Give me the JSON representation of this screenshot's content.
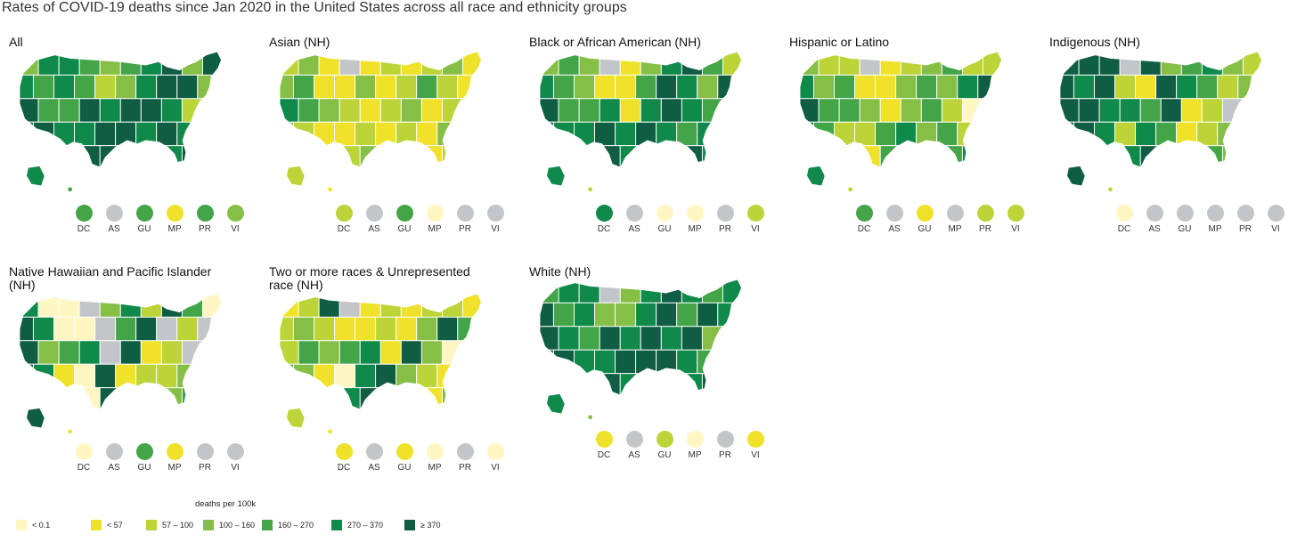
{
  "title": "Rates of COVID-19 deaths since Jan 2020 in the United States across all race and ethnicity groups",
  "legend": {
    "title": "deaths per 100k",
    "bins": [
      {
        "label": "< 0.1",
        "color": "#fff6c2"
      },
      {
        "label": "< 57",
        "color": "#f0e22a"
      },
      {
        "label": "57 – 100",
        "color": "#bcd438"
      },
      {
        "label": "100 – 160",
        "color": "#86bf45"
      },
      {
        "label": "160 – 270",
        "color": "#44a448"
      },
      {
        "label": "270 – 370",
        "color": "#0f8a4a"
      },
      {
        "label": "≥ 370",
        "color": "#0f5e44"
      }
    ],
    "no_data_color": "#c3c6c9"
  },
  "territory_labels": [
    "DC",
    "AS",
    "GU",
    "MP",
    "PR",
    "VI"
  ],
  "panels": [
    {
      "title": "All",
      "dots": [
        4,
        "na",
        4,
        1,
        4,
        3
      ],
      "rows": [
        [
          3,
          5,
          5,
          4,
          3,
          4,
          5,
          6,
          3,
          6
        ],
        [
          5,
          4,
          5,
          4,
          2,
          3,
          5,
          6,
          6,
          3
        ],
        [
          6,
          4,
          4,
          6,
          5,
          6,
          6,
          5,
          2,
          5
        ],
        [
          6,
          6,
          5,
          5,
          6,
          6,
          5,
          6,
          5,
          4
        ],
        [
          5,
          4,
          6,
          6,
          6,
          2,
          5,
          5,
          6,
          6
        ]
      ]
    },
    {
      "title": "Asian (NH)",
      "dots": [
        2,
        "na",
        4,
        0,
        "na",
        "na"
      ],
      "rows": [
        [
          2,
          3,
          1,
          "na",
          1,
          2,
          1,
          2,
          3,
          1
        ],
        [
          3,
          4,
          1,
          1,
          3,
          1,
          2,
          4,
          2,
          1
        ],
        [
          5,
          4,
          3,
          2,
          1,
          2,
          3,
          1,
          2,
          1
        ],
        [
          3,
          2,
          1,
          1,
          2,
          1,
          2,
          1,
          3,
          2
        ],
        [
          2,
          1,
          1,
          2,
          3,
          1,
          2,
          1,
          2,
          1
        ]
      ]
    },
    {
      "title": "Black or African American (NH)",
      "dots": [
        5,
        "na",
        0,
        0,
        "na",
        2
      ],
      "rows": [
        [
          3,
          4,
          3,
          "na",
          1,
          3,
          5,
          6,
          4,
          2
        ],
        [
          5,
          4,
          3,
          1,
          1,
          4,
          6,
          5,
          3,
          6
        ],
        [
          6,
          4,
          4,
          5,
          1,
          5,
          6,
          5,
          4,
          3
        ],
        [
          6,
          5,
          5,
          6,
          5,
          6,
          5,
          4,
          5,
          6
        ],
        [
          5,
          2,
          2,
          6,
          5,
          1,
          5,
          6,
          5,
          6
        ]
      ]
    },
    {
      "title": "Hispanic or Latino",
      "dots": [
        4,
        "na",
        1,
        "na",
        2,
        2
      ],
      "rows": [
        [
          3,
          2,
          2,
          "na",
          1,
          2,
          3,
          4,
          2,
          2
        ],
        [
          5,
          3,
          4,
          1,
          1,
          3,
          4,
          3,
          5,
          6
        ],
        [
          6,
          4,
          4,
          3,
          1,
          3,
          4,
          2,
          0,
          4
        ],
        [
          5,
          4,
          2,
          2,
          4,
          5,
          3,
          4,
          2,
          3
        ],
        [
          5,
          2,
          2,
          1,
          4,
          2,
          3,
          4,
          5,
          4
        ]
      ]
    },
    {
      "title": "Indigenous (NH)",
      "dots": [
        0,
        "na",
        "na",
        "na",
        "na",
        "na"
      ],
      "rows": [
        [
          6,
          6,
          6,
          "na",
          6,
          3,
          4,
          5,
          3,
          2
        ],
        [
          6,
          5,
          6,
          2,
          1,
          6,
          5,
          4,
          2,
          3
        ],
        [
          6,
          6,
          5,
          5,
          4,
          6,
          1,
          2,
          "na",
          4
        ],
        [
          6,
          6,
          5,
          2,
          5,
          4,
          1,
          2,
          3,
          5
        ],
        [
          6,
          2,
          2,
          5,
          6,
          1,
          2,
          4,
          3,
          6
        ]
      ]
    },
    {
      "title": "Native Hawaiian and Pacific Islander (NH)",
      "dots": [
        0,
        "na",
        4,
        1,
        "na",
        "na"
      ],
      "rows": [
        [
          5,
          0,
          0,
          "na",
          3,
          5,
          2,
          6,
          4,
          0
        ],
        [
          6,
          5,
          0,
          0,
          "na",
          4,
          6,
          "na",
          2,
          "na"
        ],
        [
          6,
          3,
          4,
          5,
          "na",
          6,
          1,
          2,
          "na",
          3
        ],
        [
          6,
          5,
          1,
          0,
          6,
          1,
          2,
          2,
          3,
          1
        ],
        [
          6,
          1,
          1,
          0,
          6,
          1,
          2,
          3,
          4,
          6
        ]
      ]
    },
    {
      "title": "Two or more races & Unrepresented race (NH)",
      "dots": [
        1,
        "na",
        1,
        0,
        "na",
        0
      ],
      "rows": [
        [
          1,
          2,
          6,
          "na",
          1,
          2,
          1,
          2,
          2,
          1
        ],
        [
          2,
          3,
          2,
          1,
          1,
          2,
          1,
          3,
          6,
          4
        ],
        [
          2,
          4,
          3,
          4,
          5,
          1,
          6,
          3,
          0,
          2
        ],
        [
          4,
          3,
          1,
          0,
          5,
          6,
          3,
          2,
          1,
          4
        ],
        [
          2,
          1,
          1,
          5,
          6,
          1,
          2,
          1,
          3,
          2
        ]
      ]
    },
    {
      "title": "White (NH)",
      "dots": [
        1,
        "na",
        2,
        0,
        "na",
        1
      ],
      "rows": [
        [
          4,
          5,
          5,
          "na",
          3,
          5,
          6,
          5,
          4,
          5
        ],
        [
          6,
          4,
          5,
          3,
          3,
          5,
          6,
          4,
          6,
          5
        ],
        [
          6,
          5,
          4,
          6,
          5,
          6,
          5,
          6,
          3,
          5
        ],
        [
          6,
          6,
          5,
          5,
          6,
          6,
          6,
          5,
          4,
          6
        ],
        [
          5,
          3,
          3,
          6,
          5,
          2,
          6,
          5,
          6,
          6
        ]
      ]
    }
  ]
}
